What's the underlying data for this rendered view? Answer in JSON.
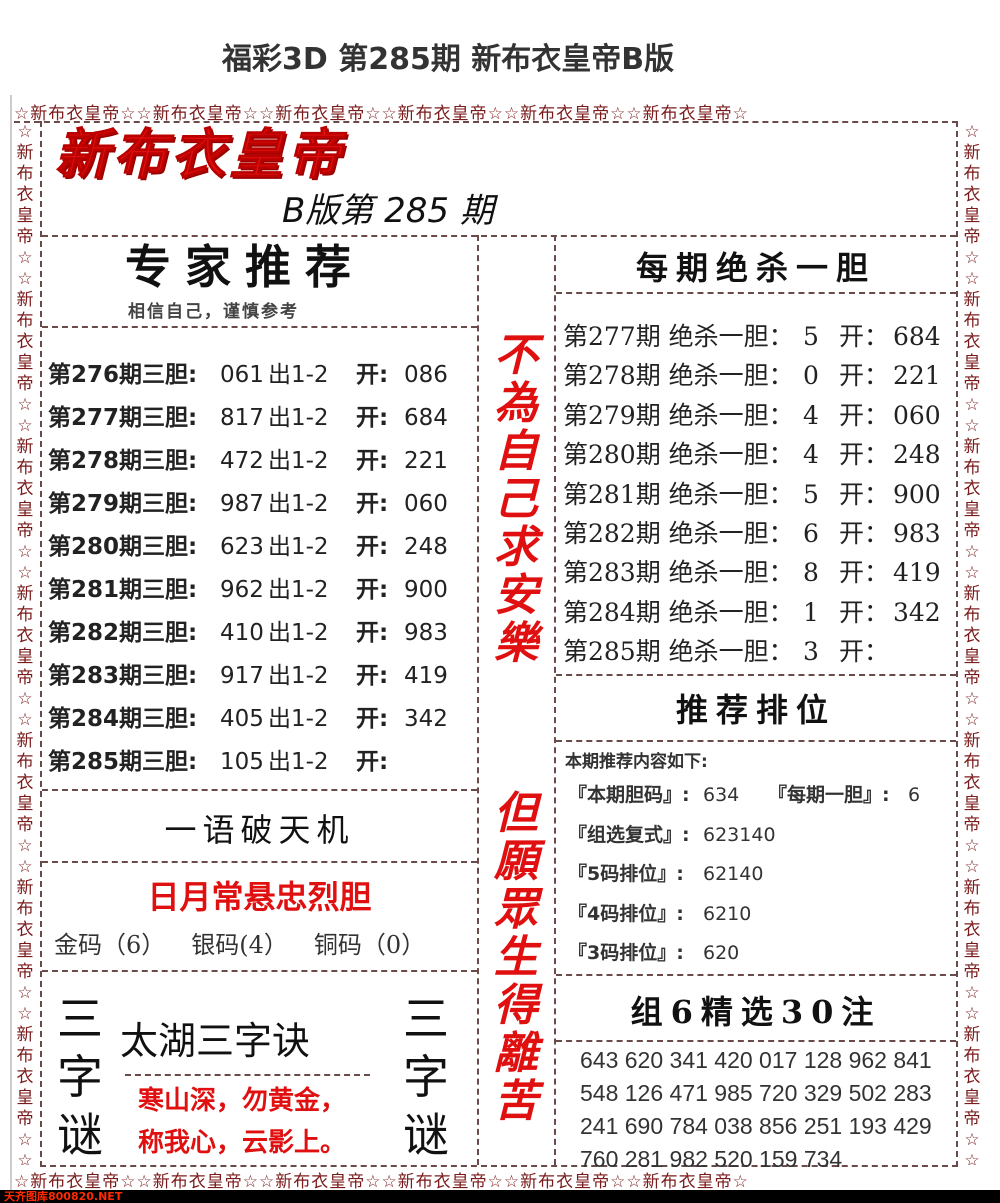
{
  "header": {
    "title": "福彩3D 第285期 新布衣皇帝B版"
  },
  "border": {
    "unit": "☆新布衣皇帝☆"
  },
  "logo": {
    "text": "新布衣皇帝",
    "issue": "B版第 285 期"
  },
  "left": {
    "title": "专家推荐",
    "subtitle": "相信自己，谨慎参考",
    "rows": [
      {
        "label": "第276期三胆:",
        "code": "061",
        "out": "出1-2",
        "open_label": "开:",
        "open": "086"
      },
      {
        "label": "第277期三胆:",
        "code": "817",
        "out": "出1-2",
        "open_label": "开:",
        "open": "684"
      },
      {
        "label": "第278期三胆:",
        "code": "472",
        "out": "出1-2",
        "open_label": "开:",
        "open": "221"
      },
      {
        "label": "第279期三胆:",
        "code": "987",
        "out": "出1-2",
        "open_label": "开:",
        "open": "060"
      },
      {
        "label": "第280期三胆:",
        "code": "623",
        "out": "出1-2",
        "open_label": "开:",
        "open": "248"
      },
      {
        "label": "第281期三胆:",
        "code": "962",
        "out": "出1-2",
        "open_label": "开:",
        "open": "900"
      },
      {
        "label": "第282期三胆:",
        "code": "410",
        "out": "出1-2",
        "open_label": "开:",
        "open": "983"
      },
      {
        "label": "第283期三胆:",
        "code": "917",
        "out": "出1-2",
        "open_label": "开:",
        "open": "419"
      },
      {
        "label": "第284期三胆:",
        "code": "405",
        "out": "出1-2",
        "open_label": "开:",
        "open": "342"
      },
      {
        "label": "第285期三胆:",
        "code": "105",
        "out": "出1-2",
        "open_label": "开:",
        "open": ""
      }
    ],
    "motto_title": "一语破天机",
    "motto": "日月常悬忠烈胆",
    "codes": [
      "金码（6）",
      "银码(4）",
      "铜码（0）"
    ],
    "riddle_side": "三字谜",
    "riddle_title": "太湖三字诀",
    "riddle_lines": [
      "寒山深，勿黄金，",
      "称我心，云影上。"
    ]
  },
  "middle": {
    "top": "不為自己求安樂",
    "bottom": "但願眾生得離苦"
  },
  "right": {
    "kill_title": "每期绝杀一胆",
    "kill_rows": [
      {
        "label": "第277期 绝杀一胆：",
        "kill": "5",
        "open_label": "开：",
        "open": "684"
      },
      {
        "label": "第278期 绝杀一胆：",
        "kill": "0",
        "open_label": "开：",
        "open": "221"
      },
      {
        "label": "第279期 绝杀一胆：",
        "kill": "4",
        "open_label": "开：",
        "open": "060"
      },
      {
        "label": "第280期 绝杀一胆：",
        "kill": "4",
        "open_label": "开：",
        "open": "248"
      },
      {
        "label": "第281期 绝杀一胆：",
        "kill": "5",
        "open_label": "开：",
        "open": "900"
      },
      {
        "label": "第282期 绝杀一胆：",
        "kill": "6",
        "open_label": "开：",
        "open": "983"
      },
      {
        "label": "第283期 绝杀一胆：",
        "kill": "8",
        "open_label": "开：",
        "open": "419"
      },
      {
        "label": "第284期 绝杀一胆：",
        "kill": "1",
        "open_label": "开：",
        "open": "342"
      },
      {
        "label": "第285期 绝杀一胆：",
        "kill": "3",
        "open_label": "开：",
        "open": ""
      }
    ],
    "rank_title": "推荐排位",
    "rank_intro": "本期推荐内容如下:",
    "rank_items": [
      {
        "label": "『本期胆码』:",
        "value": "634",
        "label2": "『每期一胆』:",
        "value2": "6"
      },
      {
        "label": "『组选复式』:",
        "value": "623140"
      },
      {
        "label": "『5码排位』:",
        "value": "62140"
      },
      {
        "label": "『4码排位』:",
        "value": "6210"
      },
      {
        "label": "『3码排位』:",
        "value": "620"
      }
    ],
    "pick_title": "组6精选30注",
    "picks": [
      "643 620 341 420 017 128 962 841",
      "548 126 471 985 720 329 502 283",
      "241 690 784 038 856 251 193 429",
      "760 281 982 520 159 734"
    ]
  },
  "watermark": "天齐图库800820.NET",
  "colors": {
    "red": "#e01010",
    "border_text": "#7a1a1a",
    "dash": "#6b4a4a"
  }
}
